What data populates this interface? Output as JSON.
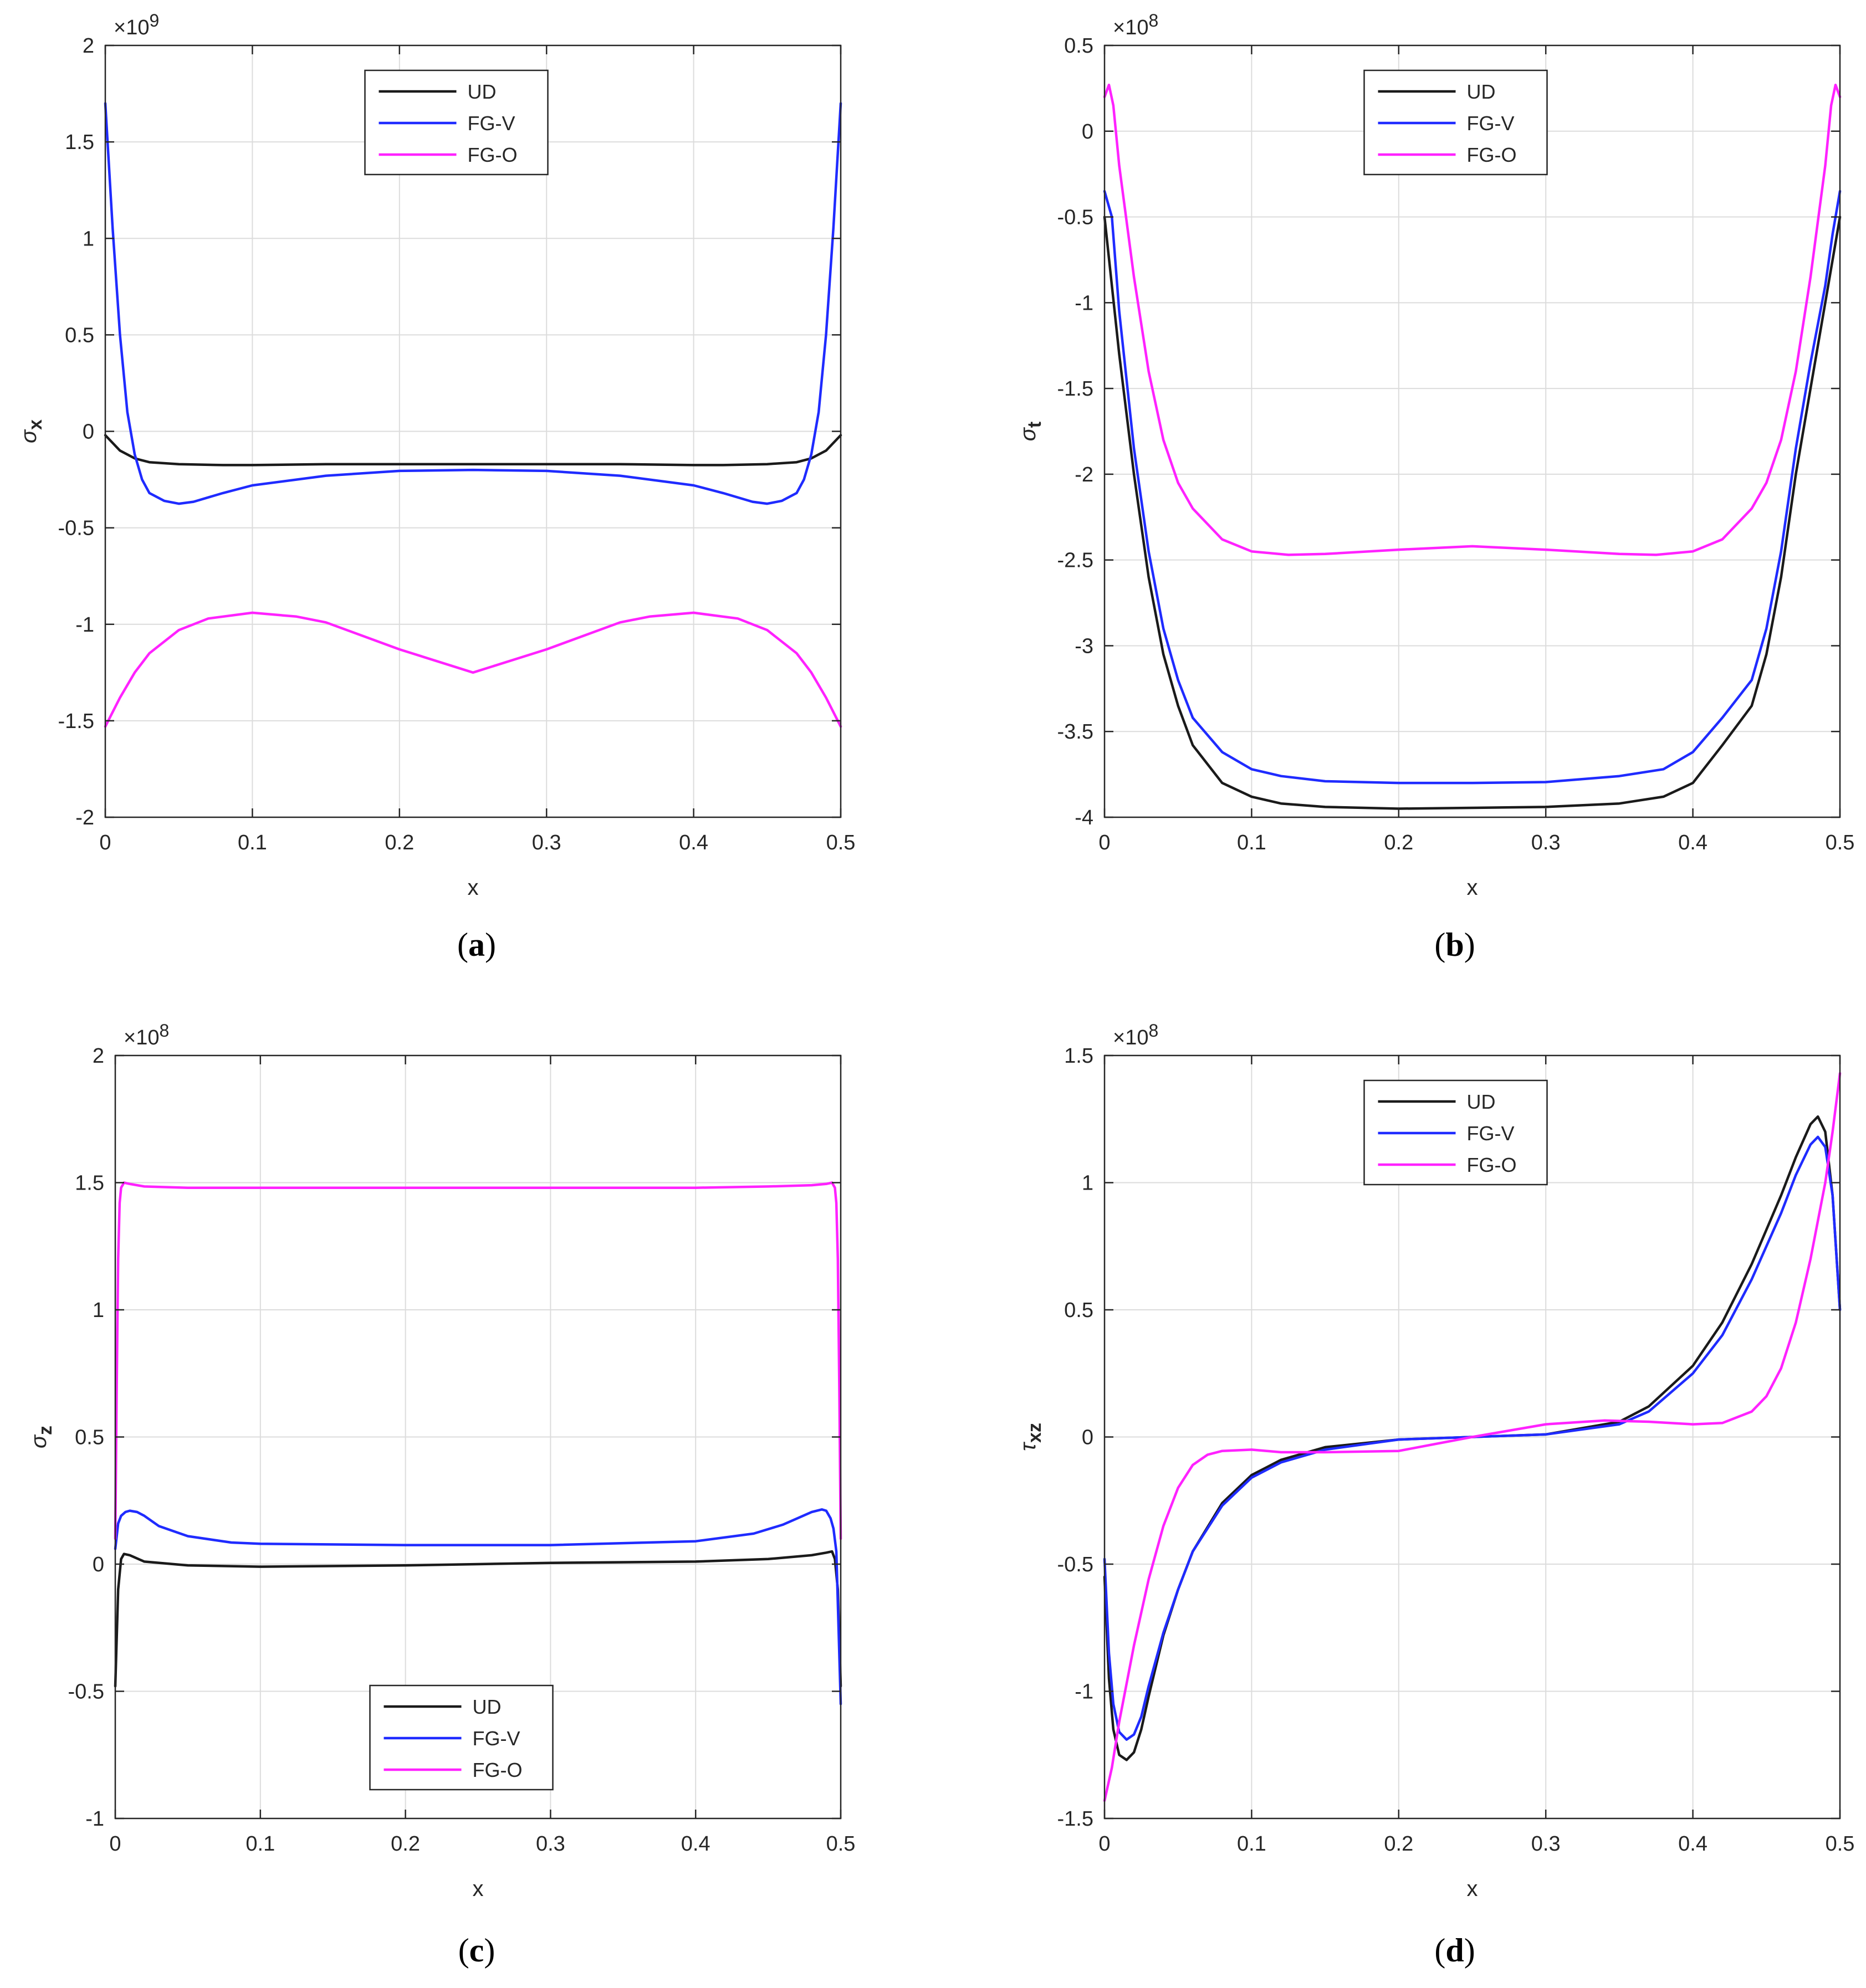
{
  "figure": {
    "legend_labels": [
      "UD",
      "FG-V",
      "FG-O"
    ],
    "colors": {
      "UD": "#1a1a1a",
      "FG-V": "#1f2bff",
      "FG-O": "#ff22ff",
      "grid": "#dcdcdc",
      "axis": "#262626",
      "text": "#262626"
    }
  },
  "chart_data": [
    {
      "id": "a",
      "type": "line",
      "caption": "(a)",
      "caption_letter": "a",
      "xlabel": "x",
      "ylabel": "σx",
      "ylabel_main": "σ",
      "ylabel_sub": "x",
      "exponent_label": "×10",
      "exponent": "9",
      "xlim": [
        0,
        0.5
      ],
      "ylim": [
        -2,
        2
      ],
      "xticks": [
        0,
        0.1,
        0.2,
        0.3,
        0.4,
        0.5
      ],
      "xtick_labels": [
        "0",
        "0.1",
        "0.2",
        "0.3",
        "0.4",
        "0.5"
      ],
      "yticks": [
        -2,
        -1.5,
        -1,
        -0.5,
        0,
        0.5,
        1,
        1.5,
        2
      ],
      "ytick_labels": [
        "-2",
        "-1.5",
        "-1",
        "-0.5",
        "0",
        "0.5",
        "1",
        "1.5",
        "2"
      ],
      "legend_position": "top-center",
      "grid": true,
      "series": [
        {
          "name": "UD",
          "x": [
            0,
            0.01,
            0.02,
            0.03,
            0.05,
            0.08,
            0.1,
            0.15,
            0.2,
            0.25,
            0.3,
            0.35,
            0.4,
            0.42,
            0.45,
            0.47,
            0.48,
            0.49,
            0.5
          ],
          "y": [
            -0.02,
            -0.1,
            -0.14,
            -0.16,
            -0.17,
            -0.175,
            -0.175,
            -0.17,
            -0.17,
            -0.17,
            -0.17,
            -0.17,
            -0.175,
            -0.175,
            -0.17,
            -0.16,
            -0.14,
            -0.1,
            -0.02
          ]
        },
        {
          "name": "FG-V",
          "x": [
            0,
            0.005,
            0.01,
            0.015,
            0.02,
            0.025,
            0.03,
            0.04,
            0.05,
            0.06,
            0.08,
            0.1,
            0.15,
            0.2,
            0.25,
            0.3,
            0.35,
            0.4,
            0.42,
            0.44,
            0.45,
            0.46,
            0.47,
            0.475,
            0.48,
            0.485,
            0.49,
            0.495,
            0.5
          ],
          "y": [
            1.7,
            1.05,
            0.5,
            0.1,
            -0.12,
            -0.25,
            -0.32,
            -0.36,
            -0.375,
            -0.365,
            -0.32,
            -0.28,
            -0.23,
            -0.205,
            -0.2,
            -0.205,
            -0.23,
            -0.28,
            -0.32,
            -0.365,
            -0.375,
            -0.36,
            -0.32,
            -0.25,
            -0.12,
            0.1,
            0.5,
            1.05,
            1.7
          ]
        },
        {
          "name": "FG-O",
          "x": [
            0,
            0.01,
            0.02,
            0.03,
            0.05,
            0.07,
            0.1,
            0.13,
            0.15,
            0.2,
            0.25,
            0.3,
            0.35,
            0.37,
            0.4,
            0.43,
            0.45,
            0.47,
            0.48,
            0.49,
            0.5
          ],
          "y": [
            -1.53,
            -1.38,
            -1.25,
            -1.15,
            -1.03,
            -0.97,
            -0.94,
            -0.96,
            -0.99,
            -1.13,
            -1.25,
            -1.13,
            -0.99,
            -0.96,
            -0.94,
            -0.97,
            -1.03,
            -1.15,
            -1.25,
            -1.38,
            -1.53
          ]
        }
      ]
    },
    {
      "id": "b",
      "type": "line",
      "caption": "(b)",
      "caption_letter": "b",
      "xlabel": "x",
      "ylabel": "σt",
      "ylabel_main": "σ",
      "ylabel_sub": "t",
      "exponent_label": "×10",
      "exponent": "8",
      "xlim": [
        0,
        0.5
      ],
      "ylim": [
        -4,
        0.5
      ],
      "xticks": [
        0,
        0.1,
        0.2,
        0.3,
        0.4,
        0.5
      ],
      "xtick_labels": [
        "0",
        "0.1",
        "0.2",
        "0.3",
        "0.4",
        "0.5"
      ],
      "yticks": [
        -4,
        -3.5,
        -3,
        -2.5,
        -2,
        -1.5,
        -1,
        -0.5,
        0,
        0.5
      ],
      "ytick_labels": [
        "-4",
        "-3.5",
        "-3",
        "-2.5",
        "-2",
        "-1.5",
        "-1",
        "-0.5",
        "0",
        "0.5"
      ],
      "legend_position": "top-center",
      "grid": true,
      "series": [
        {
          "name": "UD",
          "x": [
            0,
            0.01,
            0.02,
            0.03,
            0.04,
            0.05,
            0.06,
            0.08,
            0.1,
            0.12,
            0.15,
            0.2,
            0.25,
            0.3,
            0.35,
            0.38,
            0.4,
            0.42,
            0.44,
            0.45,
            0.46,
            0.47,
            0.48,
            0.49,
            0.5
          ],
          "y": [
            -0.5,
            -1.3,
            -2.0,
            -2.6,
            -3.05,
            -3.35,
            -3.58,
            -3.8,
            -3.88,
            -3.92,
            -3.94,
            -3.95,
            -3.945,
            -3.94,
            -3.92,
            -3.88,
            -3.8,
            -3.58,
            -3.35,
            -3.05,
            -2.6,
            -2.0,
            -1.5,
            -1.0,
            -0.5
          ]
        },
        {
          "name": "FG-V",
          "x": [
            0,
            0.005,
            0.01,
            0.02,
            0.03,
            0.04,
            0.05,
            0.06,
            0.08,
            0.1,
            0.12,
            0.15,
            0.2,
            0.25,
            0.3,
            0.35,
            0.38,
            0.4,
            0.42,
            0.44,
            0.45,
            0.46,
            0.47,
            0.48,
            0.49,
            0.495,
            0.5
          ],
          "y": [
            -0.35,
            -0.5,
            -1.05,
            -1.85,
            -2.45,
            -2.9,
            -3.2,
            -3.42,
            -3.62,
            -3.72,
            -3.76,
            -3.79,
            -3.8,
            -3.8,
            -3.795,
            -3.76,
            -3.72,
            -3.62,
            -3.42,
            -3.2,
            -2.9,
            -2.45,
            -1.85,
            -1.35,
            -0.9,
            -0.6,
            -0.35
          ]
        },
        {
          "name": "FG-O",
          "x": [
            0,
            0.003,
            0.006,
            0.01,
            0.02,
            0.03,
            0.04,
            0.05,
            0.06,
            0.08,
            0.1,
            0.125,
            0.15,
            0.2,
            0.25,
            0.3,
            0.35,
            0.375,
            0.4,
            0.42,
            0.44,
            0.45,
            0.46,
            0.47,
            0.48,
            0.49,
            0.494,
            0.497,
            0.5
          ],
          "y": [
            0.2,
            0.27,
            0.15,
            -0.2,
            -0.85,
            -1.4,
            -1.8,
            -2.05,
            -2.2,
            -2.38,
            -2.45,
            -2.47,
            -2.465,
            -2.44,
            -2.42,
            -2.44,
            -2.465,
            -2.47,
            -2.45,
            -2.38,
            -2.2,
            -2.05,
            -1.8,
            -1.4,
            -0.85,
            -0.2,
            0.15,
            0.27,
            0.2
          ]
        }
      ]
    },
    {
      "id": "c",
      "type": "line",
      "caption": "(c)",
      "caption_letter": "c",
      "xlabel": "x",
      "ylabel": "σz",
      "ylabel_main": "σ",
      "ylabel_sub": "z",
      "exponent_label": "×10",
      "exponent": "8",
      "xlim": [
        0,
        0.5
      ],
      "ylim": [
        -1,
        2
      ],
      "xticks": [
        0,
        0.1,
        0.2,
        0.3,
        0.4,
        0.5
      ],
      "xtick_labels": [
        "0",
        "0.1",
        "0.2",
        "0.3",
        "0.4",
        "0.5"
      ],
      "yticks": [
        -1,
        -0.5,
        0,
        0.5,
        1,
        1.5,
        2
      ],
      "ytick_labels": [
        "-1",
        "-0.5",
        "0",
        "0.5",
        "1",
        "1.5",
        "2"
      ],
      "legend_position": "bottom-center",
      "grid": true,
      "series": [
        {
          "name": "UD",
          "x": [
            0,
            0.002,
            0.004,
            0.006,
            0.01,
            0.02,
            0.05,
            0.1,
            0.2,
            0.25,
            0.3,
            0.4,
            0.45,
            0.48,
            0.49,
            0.494,
            0.496,
            0.498,
            0.5
          ],
          "y": [
            -0.48,
            -0.1,
            0.02,
            0.04,
            0.035,
            0.01,
            -0.005,
            -0.01,
            -0.005,
            0,
            0.005,
            0.01,
            0.02,
            0.035,
            0.045,
            0.05,
            0.02,
            -0.1,
            -0.48
          ]
        },
        {
          "name": "FG-V",
          "x": [
            0,
            0.002,
            0.004,
            0.007,
            0.01,
            0.015,
            0.02,
            0.03,
            0.05,
            0.08,
            0.1,
            0.2,
            0.3,
            0.4,
            0.44,
            0.46,
            0.47,
            0.48,
            0.487,
            0.49,
            0.493,
            0.495,
            0.497,
            0.5
          ],
          "y": [
            0.06,
            0.16,
            0.19,
            0.205,
            0.21,
            0.205,
            0.19,
            0.15,
            0.11,
            0.085,
            0.08,
            0.075,
            0.075,
            0.09,
            0.12,
            0.155,
            0.18,
            0.205,
            0.215,
            0.21,
            0.18,
            0.14,
            0.05,
            -0.55
          ]
        },
        {
          "name": "FG-O",
          "x": [
            0,
            0.001,
            0.002,
            0.003,
            0.004,
            0.006,
            0.01,
            0.02,
            0.05,
            0.1,
            0.2,
            0.3,
            0.4,
            0.45,
            0.48,
            0.49,
            0.494,
            0.496,
            0.497,
            0.498,
            0.499,
            0.5
          ],
          "y": [
            0.1,
            0.7,
            1.2,
            1.42,
            1.48,
            1.5,
            1.495,
            1.485,
            1.48,
            1.48,
            1.48,
            1.48,
            1.48,
            1.485,
            1.49,
            1.495,
            1.5,
            1.48,
            1.42,
            1.2,
            0.7,
            0.1
          ]
        }
      ]
    },
    {
      "id": "d",
      "type": "line",
      "caption": "(d)",
      "caption_letter": "d",
      "xlabel": "x",
      "ylabel": "τxz",
      "ylabel_main": "τ",
      "ylabel_sub": "xz",
      "exponent_label": "×10",
      "exponent": "8",
      "xlim": [
        0,
        0.5
      ],
      "ylim": [
        -1.5,
        1.5
      ],
      "xticks": [
        0,
        0.1,
        0.2,
        0.3,
        0.4,
        0.5
      ],
      "xtick_labels": [
        "0",
        "0.1",
        "0.2",
        "0.3",
        "0.4",
        "0.5"
      ],
      "yticks": [
        -1.5,
        -1,
        -0.5,
        0,
        0.5,
        1,
        1.5
      ],
      "ytick_labels": [
        "-1.5",
        "-1",
        "-0.5",
        "0",
        "0.5",
        "1",
        "1.5"
      ],
      "legend_position": "top-center",
      "grid": true,
      "series": [
        {
          "name": "UD",
          "x": [
            0,
            0.003,
            0.006,
            0.01,
            0.015,
            0.02,
            0.025,
            0.03,
            0.04,
            0.05,
            0.06,
            0.08,
            0.1,
            0.12,
            0.15,
            0.2,
            0.25,
            0.3,
            0.35,
            0.37,
            0.4,
            0.42,
            0.44,
            0.46,
            0.47,
            0.48,
            0.485,
            0.49,
            0.495,
            0.5
          ],
          "y": [
            -0.55,
            -0.95,
            -1.15,
            -1.25,
            -1.27,
            -1.24,
            -1.15,
            -1.02,
            -0.78,
            -0.6,
            -0.45,
            -0.26,
            -0.15,
            -0.09,
            -0.04,
            -0.01,
            0,
            0.01,
            0.06,
            0.12,
            0.28,
            0.45,
            0.68,
            0.95,
            1.1,
            1.23,
            1.26,
            1.2,
            0.95,
            0.5
          ]
        },
        {
          "name": "FG-V",
          "x": [
            0,
            0.003,
            0.006,
            0.01,
            0.015,
            0.02,
            0.025,
            0.03,
            0.04,
            0.05,
            0.06,
            0.08,
            0.1,
            0.12,
            0.15,
            0.2,
            0.25,
            0.3,
            0.35,
            0.37,
            0.4,
            0.42,
            0.44,
            0.46,
            0.47,
            0.48,
            0.485,
            0.49,
            0.495,
            0.5
          ],
          "y": [
            -0.48,
            -0.85,
            -1.05,
            -1.16,
            -1.19,
            -1.17,
            -1.1,
            -0.98,
            -0.77,
            -0.6,
            -0.45,
            -0.27,
            -0.16,
            -0.1,
            -0.05,
            -0.01,
            0,
            0.01,
            0.05,
            0.1,
            0.25,
            0.4,
            0.62,
            0.88,
            1.03,
            1.15,
            1.18,
            1.14,
            0.95,
            0.5
          ]
        },
        {
          "name": "FG-O",
          "x": [
            0,
            0.005,
            0.01,
            0.02,
            0.03,
            0.04,
            0.05,
            0.06,
            0.07,
            0.08,
            0.1,
            0.12,
            0.15,
            0.2,
            0.25,
            0.3,
            0.34,
            0.37,
            0.4,
            0.42,
            0.44,
            0.45,
            0.46,
            0.47,
            0.48,
            0.49,
            0.495,
            0.5
          ],
          "y": [
            -1.43,
            -1.3,
            -1.12,
            -0.82,
            -0.56,
            -0.35,
            -0.2,
            -0.11,
            -0.07,
            -0.055,
            -0.05,
            -0.06,
            -0.06,
            -0.055,
            0,
            0.05,
            0.065,
            0.06,
            0.05,
            0.055,
            0.1,
            0.16,
            0.27,
            0.45,
            0.7,
            1.0,
            1.2,
            1.43
          ]
        }
      ]
    }
  ]
}
